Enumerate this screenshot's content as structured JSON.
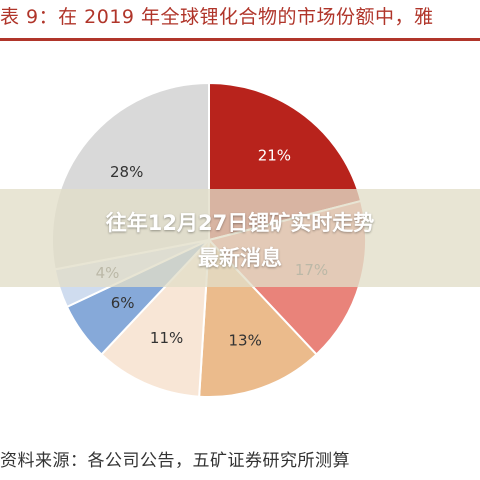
{
  "header": {
    "title": "表 9：在 2019 年全球锂化合物的市场份额中，雅"
  },
  "chart_data": {
    "type": "pie",
    "title": "表 9：在 2019 年全球锂化合物的市场份额中，雅",
    "slices": [
      {
        "label": "21%",
        "value": 21,
        "color": "#b8231c"
      },
      {
        "label": "17%",
        "value": 17,
        "color": "#e9837a"
      },
      {
        "label": "13%",
        "value": 13,
        "color": "#ebbb8c"
      },
      {
        "label": "11%",
        "value": 11,
        "color": "#f8e6d6"
      },
      {
        "label": "6%",
        "value": 6,
        "color": "#86a9d9"
      },
      {
        "label": "4%",
        "value": 4,
        "color": "#cfdcef"
      },
      {
        "label": "28%",
        "value": 28,
        "color": "#d9d9d9"
      }
    ],
    "start_angle_deg": 0,
    "direction": "clockwise"
  },
  "footer": {
    "source": "资料来源：各公司公告，五矿证券研究所测算"
  },
  "overlay": {
    "line1": "往年12月27日锂矿实时走势",
    "line2": "最新消息"
  }
}
